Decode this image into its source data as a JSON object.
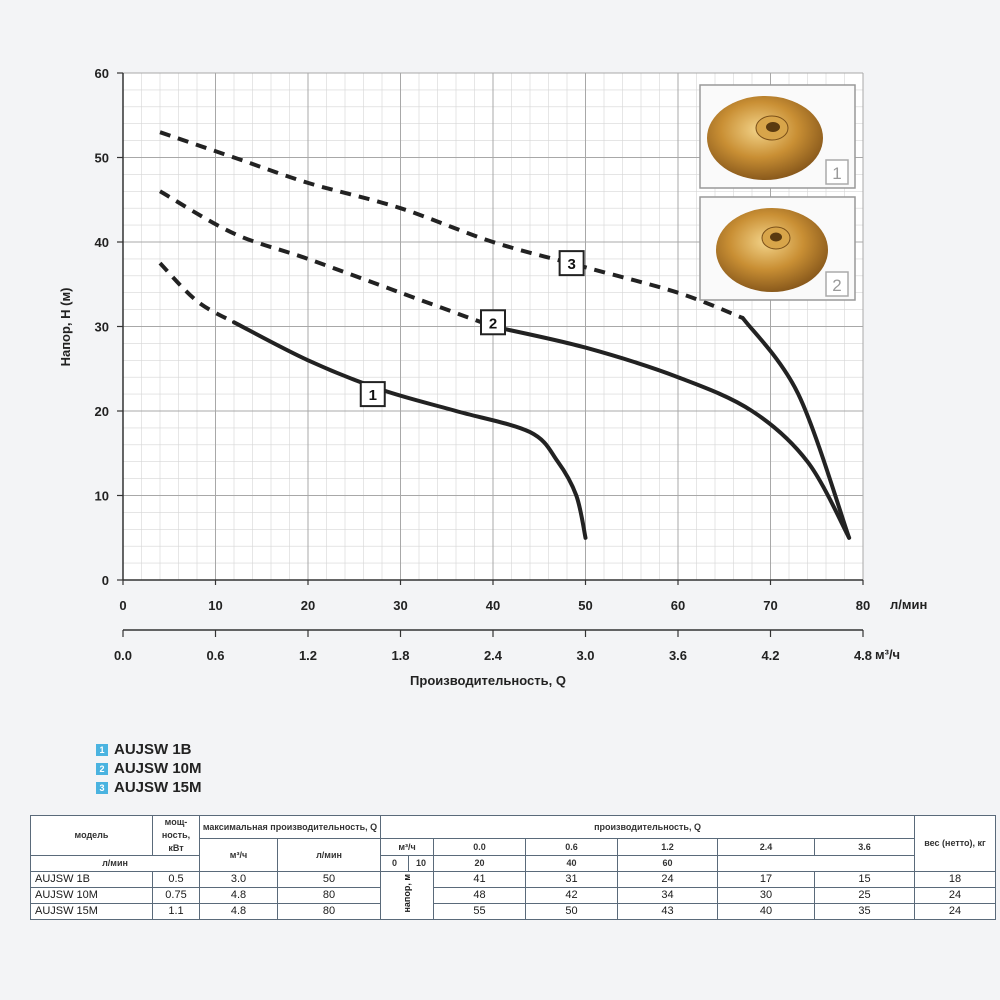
{
  "chart_data": {
    "type": "line",
    "ylabel": "Напор, Н (м)",
    "xlabel": "Производительность, Q",
    "x_unit_top": "л/мин",
    "x_unit_bottom": "м³/ч",
    "xlim": [
      0,
      80
    ],
    "ylim": [
      0,
      60
    ],
    "y_ticks": [
      "0",
      "10",
      "20",
      "30",
      "40",
      "50",
      "60"
    ],
    "x_ticks_lmin": [
      "0",
      "10",
      "20",
      "30",
      "40",
      "50",
      "60",
      "70",
      "80"
    ],
    "x_ticks_m3h": [
      "0.0",
      "0.6",
      "1.2",
      "1.8",
      "2.4",
      "3.0",
      "3.6",
      "4.2",
      "4.8"
    ],
    "grid": true,
    "series": [
      {
        "name": "1",
        "x": [
          4,
          8,
          12,
          20,
          28,
          36,
          44,
          47,
          49,
          50
        ],
        "y": [
          37.5,
          33,
          30.5,
          26,
          22.5,
          20,
          17.5,
          14,
          10,
          5
        ],
        "dashed_until_x": 12
      },
      {
        "name": "2",
        "x": [
          4,
          12,
          20,
          30,
          40,
          50,
          60,
          68,
          74,
          78.5
        ],
        "y": [
          46,
          41,
          38,
          34,
          30,
          27.5,
          24,
          20,
          14,
          5
        ],
        "dashed_until_x": 40
      },
      {
        "name": "3",
        "x": [
          4,
          12,
          20,
          30,
          40,
          50,
          60,
          67,
          73,
          78.5
        ],
        "y": [
          53,
          50,
          47,
          44,
          40,
          37,
          34,
          31,
          22,
          5
        ],
        "dashed_until_x": 67
      }
    ],
    "photo_labels": [
      "1",
      "2"
    ]
  },
  "legend": [
    {
      "num": "1",
      "label": "AUJSW 1B"
    },
    {
      "num": "2",
      "label": "AUJSW 10M"
    },
    {
      "num": "3",
      "label": "AUJSW 15M"
    }
  ],
  "table": {
    "h_model": "модель",
    "h_power": "мощ-ность, кВт",
    "h_maxflow": "максимальная производительность, Q",
    "h_flow": "производительность, Q",
    "h_weight": "вес (нетто), кг",
    "u_m3h": "м³/ч",
    "u_lmin": "л/мин",
    "h_head": "напор, м",
    "flow_m3h": [
      "0.0",
      "0.6",
      "1.2",
      "2.4",
      "3.6"
    ],
    "flow_lmin": [
      "0",
      "10",
      "20",
      "40",
      "60"
    ],
    "rows": [
      {
        "model": "AUJSW 1B",
        "power": "0.5",
        "max_m3h": "3.0",
        "max_lmin": "50",
        "heads": [
          "41",
          "31",
          "24",
          "17",
          "15"
        ],
        "weight": "18"
      },
      {
        "model": "AUJSW 10M",
        "power": "0.75",
        "max_m3h": "4.8",
        "max_lmin": "80",
        "heads": [
          "48",
          "42",
          "34",
          "30",
          "25"
        ],
        "weight": "24"
      },
      {
        "model": "AUJSW 15M",
        "power": "1.1",
        "max_m3h": "4.8",
        "max_lmin": "80",
        "heads": [
          "55",
          "50",
          "43",
          "40",
          "35"
        ],
        "weight": "24"
      }
    ]
  }
}
